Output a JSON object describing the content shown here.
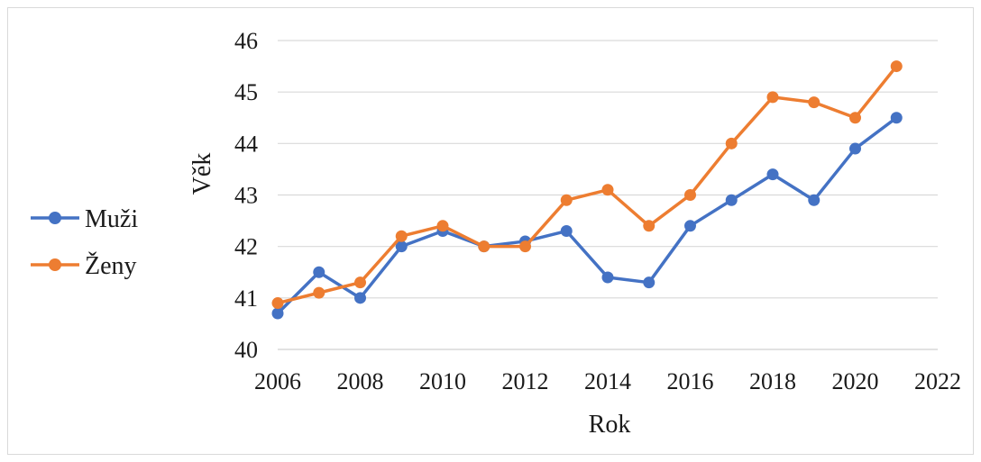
{
  "chart_data": {
    "type": "line",
    "title": "",
    "xlabel": "Rok",
    "ylabel": "Věk",
    "xlim": [
      2006,
      2022
    ],
    "ylim": [
      40,
      46
    ],
    "x_ticks": [
      2006,
      2008,
      2010,
      2012,
      2014,
      2016,
      2018,
      2020,
      2022
    ],
    "y_ticks": [
      40,
      41,
      42,
      43,
      44,
      45,
      46
    ],
    "grid": "horizontal",
    "legend_position": "left",
    "x": [
      2006,
      2007,
      2008,
      2009,
      2010,
      2011,
      2012,
      2013,
      2014,
      2015,
      2016,
      2017,
      2018,
      2019,
      2020,
      2021
    ],
    "series": [
      {
        "name": "Muži",
        "color": "#4472c4",
        "values": [
          40.7,
          41.5,
          41.0,
          42.0,
          42.3,
          42.0,
          42.1,
          42.3,
          41.4,
          41.3,
          42.4,
          42.9,
          43.4,
          42.9,
          43.9,
          44.5
        ]
      },
      {
        "name": "Ženy",
        "color": "#ed7d31",
        "values": [
          40.9,
          41.1,
          41.3,
          42.2,
          42.4,
          42.0,
          42.0,
          42.9,
          43.1,
          42.4,
          43.0,
          44.0,
          44.9,
          44.8,
          44.5,
          45.5
        ]
      }
    ]
  }
}
